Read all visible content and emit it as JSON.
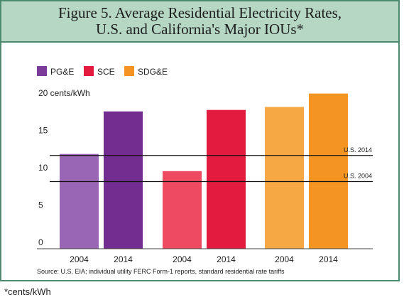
{
  "chart_data": {
    "type": "bar",
    "title_lines": [
      "Figure 5. Average Residential Electricity Rates,",
      "U.S. and California's Major IOUs*"
    ],
    "unit_label": "20 cents/kWh",
    "yticks": [
      "0",
      "5",
      "10",
      "15"
    ],
    "ylim": [
      0,
      20
    ],
    "legend": [
      {
        "name": "PG&E",
        "color": "#7a3c98"
      },
      {
        "name": "SCE",
        "color": "#e31b3e"
      },
      {
        "name": "SDG&E",
        "color": "#f39423"
      }
    ],
    "bars": [
      {
        "company": "PG&E",
        "year": "2004",
        "value": 12.7,
        "color": "#9966b5"
      },
      {
        "company": "PG&E",
        "year": "2014",
        "value": 18.4,
        "color": "#732d91"
      },
      {
        "company": "SCE",
        "year": "2004",
        "value": 10.4,
        "color": "#ee4a62"
      },
      {
        "company": "SCE",
        "year": "2014",
        "value": 18.6,
        "color": "#e31b3e"
      },
      {
        "company": "SDG&E",
        "year": "2004",
        "value": 19.0,
        "color": "#f6a845"
      },
      {
        "company": "SDG&E",
        "year": "2014",
        "value": 20.8,
        "color": "#f39423"
      }
    ],
    "reference_lines": [
      {
        "label": "U.S. 2014",
        "value": 12.5
      },
      {
        "label": "U.S. 2004",
        "value": 9.0
      }
    ],
    "source": "Source: U.S. EIA; individual utility FERC Form-1 reports, standard residential rate tariffs"
  },
  "footnote": "*cents/kWh"
}
